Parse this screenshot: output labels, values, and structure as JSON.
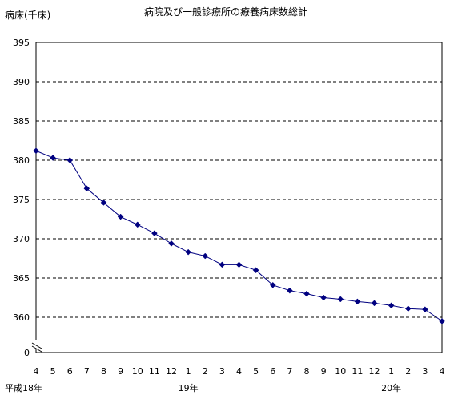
{
  "chart_data": {
    "type": "line",
    "title": "病院及び一般診療所の療養病床数総計",
    "ylabel": "病床(千床)",
    "xlabel": "",
    "ylim": [
      360,
      395
    ],
    "y_ticks": [
      "0",
      "360",
      "365",
      "370",
      "375",
      "380",
      "385",
      "390",
      "395"
    ],
    "y_axis_break": true,
    "x_ticks": [
      "4",
      "5",
      "6",
      "7",
      "8",
      "9",
      "10",
      "11",
      "12",
      "1",
      "2",
      "3",
      "4",
      "5",
      "6",
      "7",
      "8",
      "9",
      "10",
      "11",
      "12",
      "1",
      "2",
      "3",
      "4"
    ],
    "year_labels": [
      {
        "text": "平成18年",
        "index": 0
      },
      {
        "text": "19年",
        "index": 9
      },
      {
        "text": "20年",
        "index": 21
      }
    ],
    "series": [
      {
        "name": "",
        "values": [
          381.2,
          380.3,
          380.0,
          376.4,
          374.6,
          372.8,
          371.8,
          370.7,
          369.4,
          368.3,
          367.8,
          366.7,
          366.7,
          366.0,
          364.1,
          363.4,
          363.0,
          362.5,
          362.3,
          362.0,
          361.8,
          361.5,
          361.1,
          361.0,
          359.5
        ]
      }
    ],
    "grid": true,
    "gridline_style": "dashed",
    "line_color": "#000080",
    "marker": "diamond"
  }
}
